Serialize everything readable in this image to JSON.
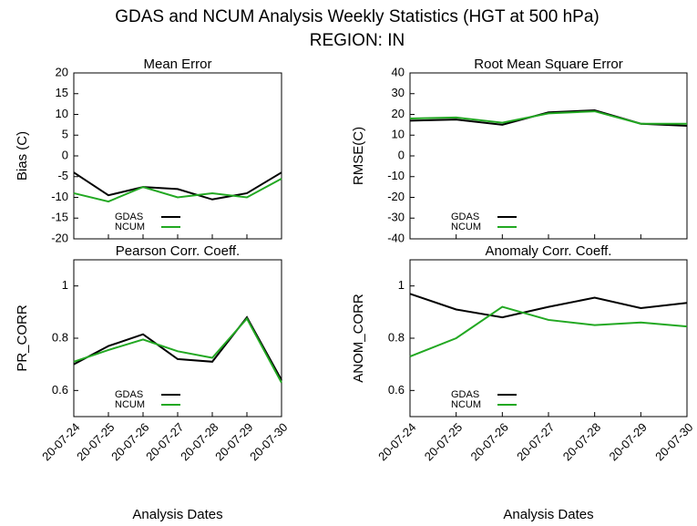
{
  "title": "GDAS and NCUM Analysis Weekly Statistics (HGT at 500 hPa)",
  "subtitle": "REGION: IN",
  "chart_data": [
    {
      "type": "line",
      "title": "Mean Error",
      "ylabel": "Bias (C)",
      "categories": [
        null,
        null,
        null,
        null,
        null,
        null,
        null
      ],
      "series": [
        {
          "name": "GDAS",
          "color": "#000000",
          "values": [
            -4,
            -9.5,
            -7.5,
            -8,
            -10.5,
            -9,
            -4
          ]
        },
        {
          "name": "NCUM",
          "color": "#22a822",
          "values": [
            -9,
            -11,
            -7.5,
            -10,
            -9,
            -10,
            -5.5
          ]
        }
      ],
      "ylim": [
        -20,
        20
      ],
      "yticks": [
        -20,
        -15,
        -10,
        -5,
        0,
        5,
        10,
        15,
        20
      ],
      "legend": "lower left"
    },
    {
      "type": "line",
      "title": "Root Mean Square Error",
      "ylabel": "RMSE(C)",
      "categories": [
        null,
        null,
        null,
        null,
        null,
        null,
        null
      ],
      "series": [
        {
          "name": "GDAS",
          "color": "#000000",
          "values": [
            17,
            17.5,
            15,
            21,
            22,
            15.5,
            14.5
          ]
        },
        {
          "name": "NCUM",
          "color": "#22a822",
          "values": [
            18,
            18.5,
            16,
            20.5,
            21.5,
            15.5,
            15.5
          ]
        }
      ],
      "ylim": [
        -40,
        40
      ],
      "yticks": [
        -40,
        -30,
        -20,
        -10,
        0,
        10,
        20,
        30,
        40
      ],
      "legend": "lower left"
    },
    {
      "type": "line",
      "title": "Pearson Corr. Coeff.",
      "ylabel": "PR_CORR",
      "xlabel": "Analysis Dates",
      "categories": [
        "20-07-24",
        "20-07-25",
        "20-07-26",
        "20-07-27",
        "20-07-28",
        "20-07-29",
        "20-07-30"
      ],
      "series": [
        {
          "name": "GDAS",
          "color": "#000000",
          "values": [
            0.7,
            0.77,
            0.815,
            0.72,
            0.71,
            0.88,
            0.64
          ]
        },
        {
          "name": "NCUM",
          "color": "#22a822",
          "values": [
            0.71,
            0.755,
            0.795,
            0.75,
            0.725,
            0.875,
            0.63
          ]
        }
      ],
      "ylim": [
        0.5,
        1.1
      ],
      "yticks": [
        0.6,
        0.8,
        1
      ],
      "legend": "lower left"
    },
    {
      "type": "line",
      "title": "Anomaly Corr. Coeff.",
      "ylabel": "ANOM_CORR",
      "xlabel": "Analysis Dates",
      "categories": [
        "20-07-24",
        "20-07-25",
        "20-07-26",
        "20-07-27",
        "20-07-28",
        "20-07-29",
        "20-07-30"
      ],
      "series": [
        {
          "name": "GDAS",
          "color": "#000000",
          "values": [
            0.97,
            0.91,
            0.88,
            0.92,
            0.955,
            0.915,
            0.935
          ]
        },
        {
          "name": "NCUM",
          "color": "#22a822",
          "values": [
            0.73,
            0.8,
            0.92,
            0.87,
            0.85,
            0.86,
            0.845
          ]
        }
      ],
      "ylim": [
        0.5,
        1.1
      ],
      "yticks": [
        0.6,
        0.8,
        1
      ],
      "legend": "lower left"
    }
  ]
}
